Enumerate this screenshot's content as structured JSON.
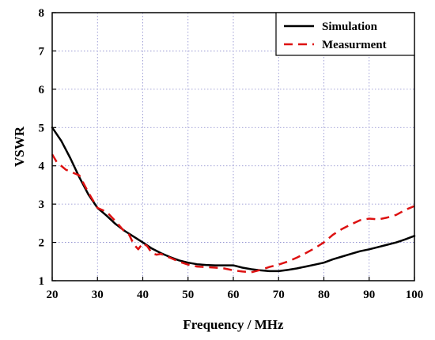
{
  "chart_data": {
    "type": "line",
    "xlabel": "Frequency / MHz",
    "ylabel": "VSWR",
    "xlim": [
      20,
      100
    ],
    "ylim": [
      1,
      8
    ],
    "x_ticks": [
      20,
      30,
      40,
      50,
      60,
      70,
      80,
      90,
      100
    ],
    "y_ticks": [
      1,
      2,
      3,
      4,
      5,
      6,
      7,
      8
    ],
    "grid": true,
    "legend_position": "top-right",
    "series": [
      {
        "name": "Simulation",
        "color": "#000000",
        "style": "solid",
        "points": [
          [
            20,
            5.0
          ],
          [
            22,
            4.65
          ],
          [
            24,
            4.2
          ],
          [
            26,
            3.7
          ],
          [
            28,
            3.25
          ],
          [
            30,
            2.9
          ],
          [
            32,
            2.7
          ],
          [
            34,
            2.48
          ],
          [
            36,
            2.3
          ],
          [
            38,
            2.15
          ],
          [
            40,
            2.0
          ],
          [
            42,
            1.84
          ],
          [
            44,
            1.72
          ],
          [
            46,
            1.62
          ],
          [
            48,
            1.53
          ],
          [
            50,
            1.47
          ],
          [
            52,
            1.43
          ],
          [
            54,
            1.41
          ],
          [
            56,
            1.4
          ],
          [
            58,
            1.4
          ],
          [
            60,
            1.4
          ],
          [
            62,
            1.34
          ],
          [
            64,
            1.3
          ],
          [
            66,
            1.27
          ],
          [
            68,
            1.25
          ],
          [
            70,
            1.25
          ],
          [
            72,
            1.28
          ],
          [
            74,
            1.32
          ],
          [
            76,
            1.37
          ],
          [
            78,
            1.42
          ],
          [
            80,
            1.47
          ],
          [
            82,
            1.56
          ],
          [
            84,
            1.63
          ],
          [
            86,
            1.7
          ],
          [
            88,
            1.77
          ],
          [
            90,
            1.82
          ],
          [
            92,
            1.88
          ],
          [
            94,
            1.94
          ],
          [
            96,
            2.0
          ],
          [
            98,
            2.08
          ],
          [
            100,
            2.17
          ]
        ]
      },
      {
        "name": "Measurment",
        "color": "#dd1111",
        "style": "dashed",
        "points": [
          [
            20,
            4.3
          ],
          [
            21,
            4.1
          ],
          [
            23,
            3.9
          ],
          [
            26,
            3.75
          ],
          [
            28,
            3.3
          ],
          [
            30,
            2.9
          ],
          [
            32,
            2.8
          ],
          [
            34,
            2.55
          ],
          [
            36,
            2.28
          ],
          [
            37,
            2.2
          ],
          [
            38,
            1.95
          ],
          [
            39,
            1.82
          ],
          [
            40,
            1.98
          ],
          [
            41,
            1.9
          ],
          [
            42,
            1.72
          ],
          [
            43,
            1.68
          ],
          [
            44,
            1.7
          ],
          [
            46,
            1.6
          ],
          [
            48,
            1.5
          ],
          [
            50,
            1.42
          ],
          [
            52,
            1.37
          ],
          [
            56,
            1.34
          ],
          [
            58,
            1.32
          ],
          [
            60,
            1.27
          ],
          [
            62,
            1.24
          ],
          [
            64,
            1.22
          ],
          [
            66,
            1.28
          ],
          [
            68,
            1.36
          ],
          [
            70,
            1.42
          ],
          [
            72,
            1.5
          ],
          [
            74,
            1.6
          ],
          [
            76,
            1.72
          ],
          [
            78,
            1.85
          ],
          [
            80,
            2.0
          ],
          [
            82,
            2.2
          ],
          [
            84,
            2.35
          ],
          [
            86,
            2.47
          ],
          [
            88,
            2.58
          ],
          [
            90,
            2.62
          ],
          [
            92,
            2.6
          ],
          [
            94,
            2.65
          ],
          [
            96,
            2.72
          ],
          [
            98,
            2.85
          ],
          [
            100,
            2.95
          ]
        ]
      }
    ]
  }
}
